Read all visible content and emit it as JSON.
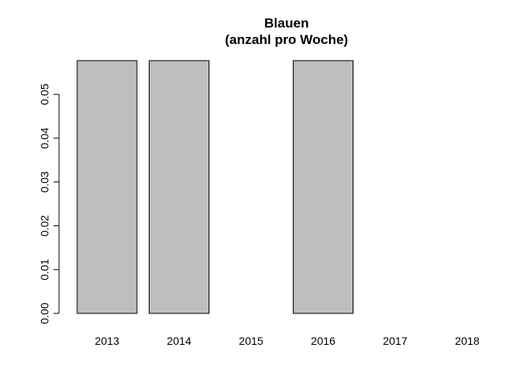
{
  "chart_data": {
    "type": "bar",
    "title": "Blauen",
    "subtitle": "(anzahl pro Woche)",
    "xlabel": "",
    "ylabel": "",
    "categories": [
      "2013",
      "2014",
      "2015",
      "2016",
      "2017",
      "2018"
    ],
    "values": [
      0.0577,
      0.0577,
      0,
      0.0577,
      0,
      null
    ],
    "ylim": [
      0,
      0.0577
    ],
    "yticks": [
      "0.00",
      "0.01",
      "0.02",
      "0.03",
      "0.04",
      "0.05"
    ],
    "bar_color": "#bebebe",
    "grid": false,
    "legend": "none"
  }
}
